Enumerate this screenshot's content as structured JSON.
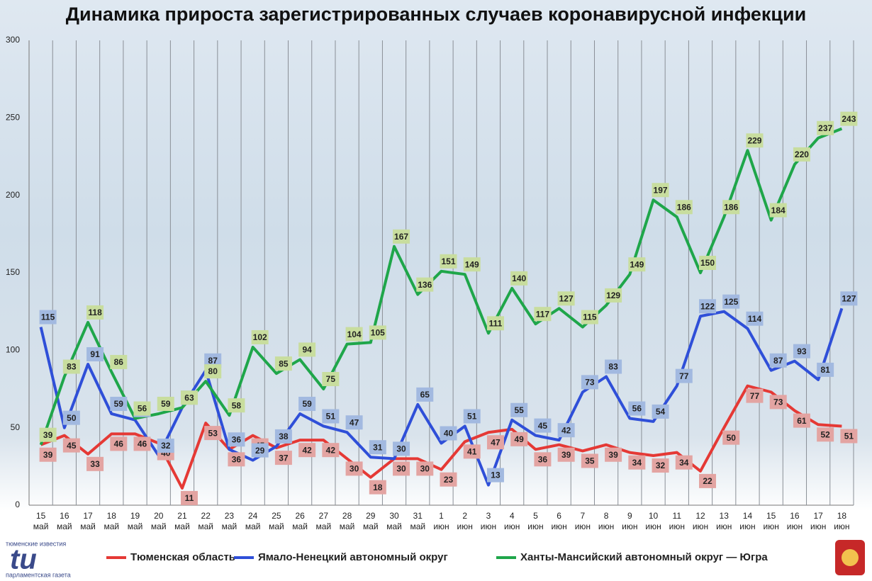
{
  "chart_data": {
    "type": "line",
    "title": "Динамика прироста зарегистрированных случаев коронавирусной инфекции",
    "categories": [
      "15 май",
      "16 май",
      "17 май",
      "18 май",
      "19 май",
      "20 май",
      "21 май",
      "22 май",
      "23 май",
      "24 май",
      "25 май",
      "26 май",
      "27 май",
      "28 май",
      "29 май",
      "30 май",
      "31 май",
      "1 июн",
      "2 июн",
      "3 июн",
      "4 июн",
      "5 июн",
      "6 июн",
      "7 июн",
      "8 июн",
      "9 июн",
      "10 июн",
      "11 июн",
      "12 июн",
      "13 июн",
      "14 июн",
      "15 июн",
      "16 июн",
      "17 июн",
      "18 июн"
    ],
    "series": [
      {
        "name": "Тюменская область",
        "color": "#e53935",
        "label_fill": "#e3a4a2",
        "values": [
          39,
          45,
          33,
          46,
          46,
          40,
          11,
          53,
          36,
          45,
          37,
          42,
          42,
          30,
          18,
          30,
          30,
          23,
          41,
          47,
          49,
          36,
          39,
          35,
          39,
          34,
          32,
          34,
          22,
          50,
          77,
          73,
          61,
          52,
          51
        ]
      },
      {
        "name": "Ямало-Ненецкий автономный округ",
        "color": "#2f4fd8",
        "label_fill": "#a2b9e0",
        "values": [
          115,
          50,
          91,
          59,
          55,
          32,
          63,
          87,
          36,
          29,
          38,
          59,
          51,
          47,
          31,
          30,
          65,
          40,
          51,
          13,
          55,
          45,
          42,
          73,
          83,
          56,
          54,
          77,
          122,
          125,
          114,
          87,
          93,
          81,
          127
        ]
      },
      {
        "name": "Ханты-Мансийский автономный округ — Югра",
        "color": "#1fa64a",
        "label_fill": "#c8dd9e",
        "values": [
          39,
          83,
          118,
          86,
          56,
          59,
          63,
          80,
          58,
          102,
          85,
          94,
          75,
          104,
          105,
          167,
          136,
          151,
          149,
          111,
          140,
          117,
          127,
          115,
          129,
          149,
          197,
          186,
          150,
          186,
          229,
          184,
          220,
          237,
          243
        ]
      }
    ],
    "ylim": [
      0,
      300
    ],
    "yticks": [
      0,
      50,
      100,
      150,
      200,
      250,
      300
    ],
    "grid": true,
    "legend": "bottom"
  },
  "logo": {
    "top": "тюменские известия",
    "mark": "tu",
    "bottom": "парламентская газета"
  }
}
